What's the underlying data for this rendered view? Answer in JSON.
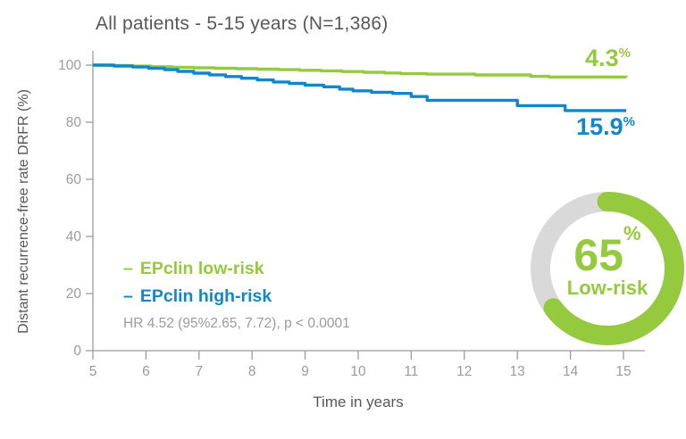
{
  "chart_data": {
    "type": "line",
    "subtype": "kaplan-meier-step",
    "title": "All patients - 5-15 years (N=1,386)",
    "xlabel": "Time in years",
    "ylabel": "Distant recurrence-free rate DRFR (%)",
    "xlim": [
      5,
      15
    ],
    "ylim": [
      0,
      100
    ],
    "xticks": [
      5,
      6,
      7,
      8,
      9,
      10,
      11,
      12,
      13,
      14,
      15
    ],
    "yticks": [
      0,
      20,
      40,
      60,
      80,
      100
    ],
    "grid": false,
    "legend_position": "lower-left-inside",
    "annotation": "HR 4.52 (95%2.65, 7.72), p < 0.0001",
    "series": [
      {
        "name": "EPclin low-risk",
        "color": "#95C93E",
        "end_label": {
          "value": "4.3",
          "unit": "%"
        },
        "points": [
          [
            5,
            100
          ],
          [
            5.35,
            99.85
          ],
          [
            5.75,
            99.65
          ],
          [
            6.1,
            99.45
          ],
          [
            6.5,
            99.25
          ],
          [
            6.9,
            99.05
          ],
          [
            7.3,
            98.9
          ],
          [
            7.7,
            98.75
          ],
          [
            8.1,
            98.6
          ],
          [
            8.5,
            98.4
          ],
          [
            8.9,
            98.2
          ],
          [
            9.3,
            98
          ],
          [
            9.7,
            97.75
          ],
          [
            10.1,
            97.5
          ],
          [
            10.5,
            97.25
          ],
          [
            10.8,
            97
          ],
          [
            11.3,
            96.85
          ],
          [
            12.2,
            96.55
          ],
          [
            13.25,
            96.05
          ],
          [
            13.6,
            95.85
          ],
          [
            15.05,
            95.7
          ]
        ]
      },
      {
        "name": "EPclin high-risk",
        "color": "#1187CB",
        "end_label": {
          "value": "15.9",
          "unit": "%"
        },
        "points": [
          [
            5,
            100
          ],
          [
            5.4,
            99.7
          ],
          [
            5.75,
            99.35
          ],
          [
            6.05,
            98.9
          ],
          [
            6.35,
            98.4
          ],
          [
            6.6,
            97.8
          ],
          [
            6.9,
            97.2
          ],
          [
            7.2,
            96.6
          ],
          [
            7.5,
            96
          ],
          [
            7.8,
            95.4
          ],
          [
            8.1,
            94.8
          ],
          [
            8.4,
            94.1
          ],
          [
            8.7,
            93.6
          ],
          [
            9,
            93
          ],
          [
            9.35,
            92.4
          ],
          [
            9.65,
            91.6
          ],
          [
            9.9,
            91
          ],
          [
            10.25,
            90.5
          ],
          [
            10.65,
            90.1
          ],
          [
            11,
            89
          ],
          [
            11.3,
            87.7
          ],
          [
            13,
            85.8
          ],
          [
            13.9,
            84.1
          ],
          [
            15.05,
            84.1
          ]
        ]
      }
    ]
  },
  "legend": {
    "dash": "–"
  },
  "donut": {
    "percent": "65",
    "unit": "%",
    "label": "Low-risk",
    "color": "#95C93E",
    "track_color": "#D9D9D9"
  },
  "colors": {
    "axis": "#9B9B9B",
    "text_dark": "#57585A",
    "text_muted": "#9B9B9B",
    "green": "#95C93E",
    "blue": "#1187CB"
  }
}
